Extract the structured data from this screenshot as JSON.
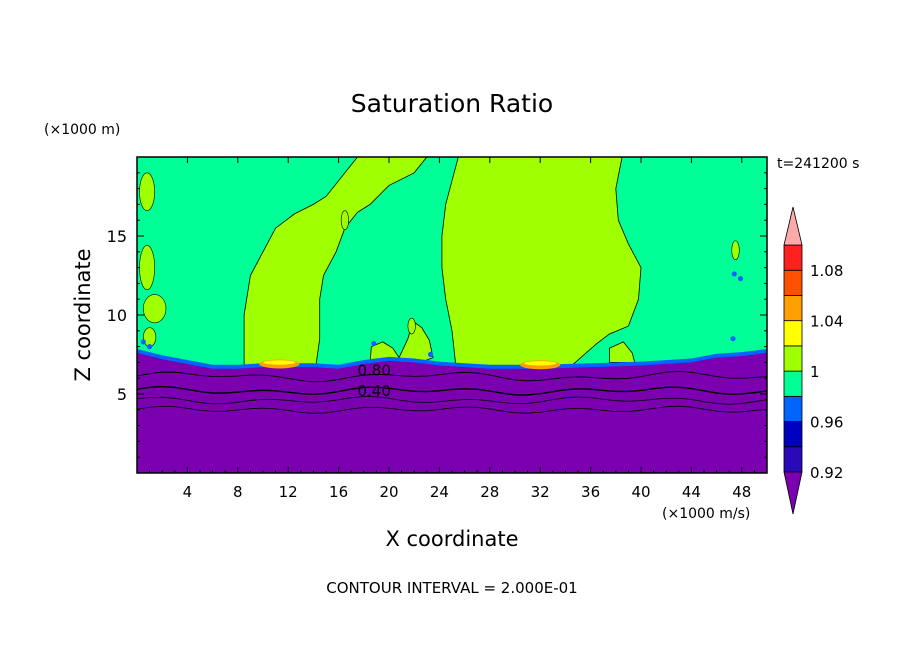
{
  "chart_data": {
    "type": "heatmap",
    "title": "Saturation Ratio",
    "xlabel": "X coordinate",
    "ylabel": "Z coordinate",
    "x_unit": "(×1000 m/s)",
    "y_unit": "(×1000 m)",
    "time_label": "t=241200 s",
    "footer": "CONTOUR INTERVAL = 2.000E-01",
    "xlim": [
      0,
      50
    ],
    "ylim": [
      0,
      20
    ],
    "x_ticks": [
      4,
      8,
      12,
      16,
      20,
      24,
      28,
      32,
      36,
      40,
      44,
      48
    ],
    "y_ticks": [
      5,
      10,
      15
    ],
    "colorbar_labels": [
      "1.08",
      "1.04",
      "1",
      "0.96",
      "0.92"
    ],
    "colorbar_colors": [
      "#7a00b0",
      "#2a0ab8",
      "#0000c0",
      "#0064ff",
      "#00ff96",
      "#a0ff00",
      "#ffff00",
      "#ffa000",
      "#ff5000",
      "#ff2020",
      "#ffaaaa"
    ],
    "contour_labels": [
      {
        "text": "0.80",
        "x": 17.5,
        "y": 6.5
      },
      {
        "text": "0.40",
        "x": 17.5,
        "y": 5.2
      }
    ],
    "colors": {
      "dry": "#7a00b0",
      "saturated": "#00ff96",
      "supersaturated": "#a0ff00",
      "edge": "#0064ff",
      "peak_orange": "#ffa000",
      "peak_yellow": "#ffff00"
    }
  }
}
